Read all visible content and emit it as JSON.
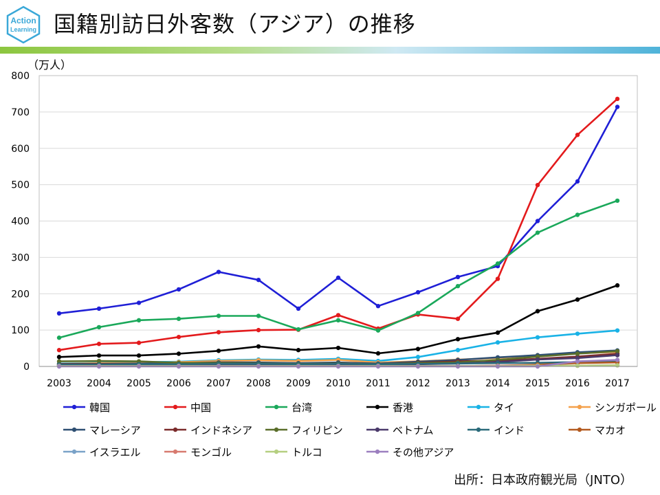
{
  "header": {
    "title": "国籍別訪日外客数（アジア）の推移",
    "logo_text_top": "Action",
    "logo_text_bottom": "Learning",
    "rule_colors": [
      "#8cc63f",
      "#4fb3d9"
    ]
  },
  "source_note": "出所：日本政府観光局（JNTO）",
  "chart_data": {
    "type": "line",
    "title": "国籍別訪日外客数（アジア）の推移",
    "ylabel": "（万人）",
    "xlabel": "",
    "ylim": [
      0,
      800
    ],
    "yticks": [
      0,
      100,
      200,
      300,
      400,
      500,
      600,
      700,
      800
    ],
    "grid": true,
    "legend_position": "bottom",
    "categories": [
      "2003",
      "2004",
      "2005",
      "2006",
      "2007",
      "2008",
      "2009",
      "2010",
      "2011",
      "2012",
      "2013",
      "2014",
      "2015",
      "2016",
      "2017"
    ],
    "series": [
      {
        "name": "韓国",
        "color": "#1f1fd6",
        "values": [
          146,
          159,
          175,
          212,
          260,
          238,
          159,
          244,
          166,
          204,
          246,
          276,
          400,
          509,
          714
        ]
      },
      {
        "name": "中国",
        "color": "#e31a1c",
        "values": [
          45,
          62,
          65,
          81,
          94,
          100,
          101,
          141,
          104,
          143,
          131,
          241,
          499,
          637,
          736
        ]
      },
      {
        "name": "台湾",
        "color": "#1aa85a",
        "values": [
          79,
          108,
          127,
          131,
          139,
          139,
          102,
          127,
          99,
          147,
          221,
          283,
          368,
          417,
          456
        ]
      },
      {
        "name": "香港",
        "color": "#000000",
        "values": [
          26,
          30,
          30,
          35,
          43,
          55,
          45,
          51,
          36,
          48,
          75,
          93,
          152,
          184,
          223
        ]
      },
      {
        "name": "タイ",
        "color": "#19b2e6",
        "values": [
          8,
          10,
          12,
          13,
          17,
          19,
          18,
          21,
          15,
          26,
          45,
          66,
          80,
          90,
          99
        ]
      },
      {
        "name": "シンガポール",
        "color": "#f4a04a",
        "values": [
          7,
          9,
          9,
          12,
          15,
          17,
          15,
          18,
          11,
          14,
          19,
          23,
          31,
          36,
          40
        ]
      },
      {
        "name": "マレーシア",
        "color": "#2e4f72",
        "values": [
          7,
          7,
          8,
          9,
          11,
          11,
          9,
          11,
          8,
          13,
          18,
          25,
          31,
          39,
          44
        ]
      },
      {
        "name": "インドネシア",
        "color": "#7b2b2b",
        "values": [
          6,
          6,
          6,
          6,
          6,
          7,
          6,
          8,
          6,
          10,
          14,
          16,
          21,
          27,
          35
        ]
      },
      {
        "name": "フィリピン",
        "color": "#5a6e2a",
        "values": [
          14,
          15,
          14,
          10,
          9,
          8,
          7,
          8,
          6,
          9,
          11,
          18,
          27,
          35,
          42
        ]
      },
      {
        "name": "ベトナム",
        "color": "#4b3a6b",
        "values": [
          3,
          3,
          4,
          4,
          4,
          5,
          5,
          4,
          4,
          6,
          8,
          12,
          19,
          23,
          31
        ]
      },
      {
        "name": "インド",
        "color": "#2a6a7a",
        "values": [
          5,
          5,
          6,
          6,
          7,
          7,
          6,
          7,
          6,
          7,
          8,
          9,
          10,
          12,
          13
        ]
      },
      {
        "name": "マカオ",
        "color": "#b35a1f",
        "values": [
          1,
          1,
          1,
          1,
          1,
          1,
          1,
          1,
          1,
          1,
          1,
          2,
          5,
          9,
          11
        ]
      },
      {
        "name": "イスラエル",
        "color": "#7aa2c8",
        "values": [
          1,
          1,
          1,
          1,
          1,
          1,
          1,
          1,
          1,
          1,
          1,
          1,
          2,
          2,
          3
        ]
      },
      {
        "name": "モンゴル",
        "color": "#d77a6f",
        "values": [
          1,
          1,
          1,
          1,
          1,
          1,
          1,
          1,
          1,
          1,
          1,
          2,
          2,
          2,
          3
        ]
      },
      {
        "name": "トルコ",
        "color": "#b5cf80",
        "values": [
          1,
          1,
          1,
          1,
          1,
          1,
          1,
          1,
          1,
          1,
          1,
          1,
          2,
          2,
          3
        ]
      },
      {
        "name": "その他アジア",
        "color": "#9b7fbf",
        "values": [
          0,
          0,
          0,
          0,
          0,
          0,
          0,
          0,
          0,
          0,
          0,
          0,
          0,
          14,
          18
        ]
      }
    ]
  }
}
